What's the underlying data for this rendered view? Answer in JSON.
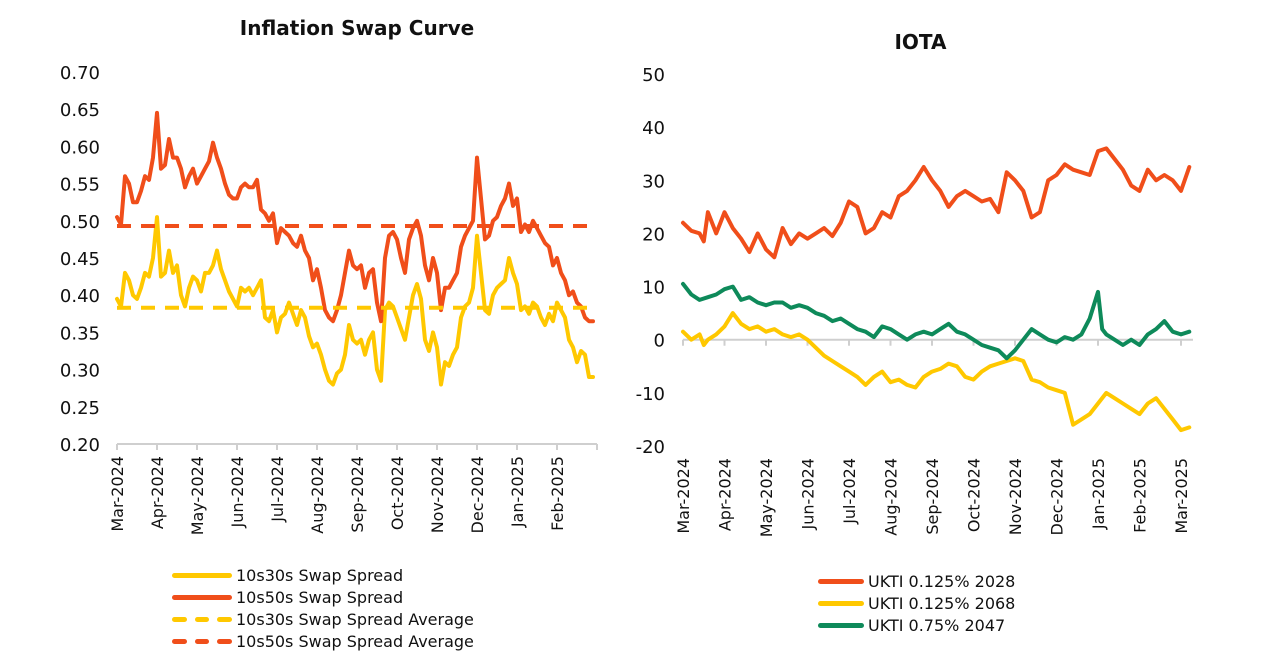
{
  "chart_data": [
    {
      "type": "line",
      "title": "Inflation Swap Curve",
      "xlabel": "",
      "ylabel": "",
      "ylim": [
        0.2,
        0.7
      ],
      "yticks": [
        "0.70",
        "0.65",
        "0.60",
        "0.55",
        "0.50",
        "0.45",
        "0.40",
        "0.35",
        "0.30",
        "0.25",
        "0.20"
      ],
      "ytick_values": [
        0.7,
        0.65,
        0.6,
        0.55,
        0.5,
        0.45,
        0.4,
        0.35,
        0.3,
        0.25,
        0.2
      ],
      "categories": [
        "Mar-2024",
        "Apr-2024",
        "May-2024",
        "Jun-2024",
        "Jul-2024",
        "Aug-2024",
        "Sep-2024",
        "Oct-2024",
        "Nov-2024",
        "Dec-2024",
        "Jan-2025",
        "Feb-2025"
      ],
      "x_months_span": 12,
      "grid": false,
      "legend_position": "bottom",
      "series": [
        {
          "name": "10s30s Swap Spread",
          "color": "#FFC800",
          "style": "solid",
          "x": [
            0,
            0.1,
            0.2,
            0.3,
            0.4,
            0.5,
            0.6,
            0.7,
            0.8,
            0.9,
            1.0,
            1.1,
            1.2,
            1.3,
            1.4,
            1.5,
            1.6,
            1.7,
            1.8,
            1.9,
            2.0,
            2.1,
            2.2,
            2.3,
            2.4,
            2.5,
            2.6,
            2.7,
            2.8,
            2.9,
            3.0,
            3.1,
            3.2,
            3.3,
            3.4,
            3.5,
            3.6,
            3.7,
            3.8,
            3.9,
            4.0,
            4.1,
            4.2,
            4.3,
            4.4,
            4.5,
            4.6,
            4.7,
            4.8,
            4.9,
            5.0,
            5.1,
            5.2,
            5.3,
            5.4,
            5.5,
            5.6,
            5.7,
            5.8,
            5.9,
            6.0,
            6.1,
            6.2,
            6.3,
            6.4,
            6.5,
            6.6,
            6.7,
            6.8,
            6.9,
            7.0,
            7.1,
            7.2,
            7.3,
            7.4,
            7.5,
            7.6,
            7.7,
            7.8,
            7.9,
            8.0,
            8.1,
            8.2,
            8.3,
            8.4,
            8.5,
            8.6,
            8.7,
            8.8,
            8.9,
            9.0,
            9.1,
            9.2,
            9.3,
            9.4,
            9.5,
            9.6,
            9.7,
            9.8,
            9.9,
            10.0,
            10.1,
            10.2,
            10.3,
            10.4,
            10.5,
            10.6,
            10.7,
            10.8,
            10.9,
            11.0,
            11.1,
            11.2,
            11.3,
            11.4,
            11.5,
            11.6,
            11.7,
            11.8,
            11.9
          ],
          "values": [
            0.395,
            0.385,
            0.43,
            0.42,
            0.4,
            0.395,
            0.41,
            0.43,
            0.425,
            0.45,
            0.505,
            0.425,
            0.43,
            0.46,
            0.43,
            0.44,
            0.4,
            0.385,
            0.41,
            0.425,
            0.42,
            0.405,
            0.43,
            0.43,
            0.44,
            0.46,
            0.435,
            0.42,
            0.405,
            0.395,
            0.385,
            0.41,
            0.405,
            0.41,
            0.4,
            0.41,
            0.42,
            0.37,
            0.365,
            0.38,
            0.35,
            0.37,
            0.375,
            0.39,
            0.375,
            0.36,
            0.38,
            0.37,
            0.345,
            0.33,
            0.335,
            0.32,
            0.3,
            0.285,
            0.28,
            0.295,
            0.3,
            0.32,
            0.36,
            0.34,
            0.335,
            0.34,
            0.32,
            0.34,
            0.35,
            0.3,
            0.285,
            0.38,
            0.39,
            0.385,
            0.37,
            0.355,
            0.34,
            0.37,
            0.4,
            0.415,
            0.395,
            0.34,
            0.325,
            0.35,
            0.33,
            0.28,
            0.31,
            0.305,
            0.32,
            0.33,
            0.37,
            0.385,
            0.39,
            0.41,
            0.48,
            0.43,
            0.38,
            0.375,
            0.4,
            0.41,
            0.415,
            0.42,
            0.45,
            0.43,
            0.415,
            0.38,
            0.385,
            0.375,
            0.39,
            0.385,
            0.37,
            0.36,
            0.375,
            0.365,
            0.39,
            0.38,
            0.37,
            0.34,
            0.33,
            0.31,
            0.325,
            0.32,
            0.29,
            0.29
          ]
        },
        {
          "name": "10s50s Swap Spread",
          "color": "#F04E1A",
          "style": "solid",
          "x": [
            0,
            0.1,
            0.2,
            0.3,
            0.4,
            0.5,
            0.6,
            0.7,
            0.8,
            0.9,
            1.0,
            1.1,
            1.2,
            1.3,
            1.4,
            1.5,
            1.6,
            1.7,
            1.8,
            1.9,
            2.0,
            2.1,
            2.2,
            2.3,
            2.4,
            2.5,
            2.6,
            2.7,
            2.8,
            2.9,
            3.0,
            3.1,
            3.2,
            3.3,
            3.4,
            3.5,
            3.6,
            3.7,
            3.8,
            3.9,
            4.0,
            4.1,
            4.2,
            4.3,
            4.4,
            4.5,
            4.6,
            4.7,
            4.8,
            4.9,
            5.0,
            5.1,
            5.2,
            5.3,
            5.4,
            5.5,
            5.6,
            5.7,
            5.8,
            5.9,
            6.0,
            6.1,
            6.2,
            6.3,
            6.4,
            6.5,
            6.6,
            6.7,
            6.8,
            6.9,
            7.0,
            7.1,
            7.2,
            7.3,
            7.4,
            7.5,
            7.6,
            7.7,
            7.8,
            7.9,
            8.0,
            8.1,
            8.2,
            8.3,
            8.4,
            8.5,
            8.6,
            8.7,
            8.8,
            8.9,
            9.0,
            9.1,
            9.2,
            9.3,
            9.4,
            9.5,
            9.6,
            9.7,
            9.8,
            9.9,
            10.0,
            10.1,
            10.2,
            10.3,
            10.4,
            10.5,
            10.6,
            10.7,
            10.8,
            10.9,
            11.0,
            11.1,
            11.2,
            11.3,
            11.4,
            11.5,
            11.6,
            11.7,
            11.8,
            11.9
          ],
          "values": [
            0.505,
            0.495,
            0.56,
            0.55,
            0.525,
            0.525,
            0.54,
            0.56,
            0.555,
            0.585,
            0.645,
            0.57,
            0.575,
            0.61,
            0.585,
            0.585,
            0.57,
            0.545,
            0.56,
            0.57,
            0.55,
            0.56,
            0.57,
            0.58,
            0.605,
            0.585,
            0.57,
            0.55,
            0.535,
            0.53,
            0.53,
            0.545,
            0.55,
            0.545,
            0.545,
            0.555,
            0.515,
            0.51,
            0.5,
            0.51,
            0.47,
            0.49,
            0.485,
            0.48,
            0.47,
            0.465,
            0.48,
            0.46,
            0.45,
            0.42,
            0.435,
            0.41,
            0.38,
            0.37,
            0.365,
            0.38,
            0.4,
            0.43,
            0.46,
            0.44,
            0.435,
            0.44,
            0.41,
            0.43,
            0.435,
            0.39,
            0.365,
            0.45,
            0.48,
            0.485,
            0.475,
            0.45,
            0.43,
            0.475,
            0.49,
            0.5,
            0.48,
            0.44,
            0.42,
            0.45,
            0.43,
            0.38,
            0.41,
            0.41,
            0.42,
            0.43,
            0.465,
            0.48,
            0.49,
            0.5,
            0.585,
            0.53,
            0.475,
            0.48,
            0.5,
            0.505,
            0.52,
            0.53,
            0.55,
            0.52,
            0.53,
            0.485,
            0.495,
            0.485,
            0.5,
            0.49,
            0.48,
            0.47,
            0.465,
            0.44,
            0.45,
            0.43,
            0.42,
            0.4,
            0.405,
            0.39,
            0.385,
            0.37,
            0.365,
            0.365
          ]
        },
        {
          "name": "10s30s Swap Spread Average",
          "color": "#FFC800",
          "style": "dashed",
          "x": [
            0,
            11.9
          ],
          "values": [
            0.383,
            0.383
          ]
        },
        {
          "name": "10s50s Swap Spread Average",
          "color": "#F04E1A",
          "style": "dashed",
          "x": [
            0,
            11.9
          ],
          "values": [
            0.493,
            0.493
          ]
        }
      ]
    },
    {
      "type": "line",
      "title": "IOTA",
      "xlabel": "",
      "ylabel": "",
      "ylim": [
        -20,
        50
      ],
      "yticks": [
        "50",
        "40",
        "30",
        "20",
        "10",
        "0",
        "-10",
        "-20"
      ],
      "ytick_values": [
        50,
        40,
        30,
        20,
        10,
        0,
        -10,
        -20
      ],
      "categories": [
        "Mar-2024",
        "Apr-2024",
        "May-2024",
        "Jun-2024",
        "Jul-2024",
        "Aug-2024",
        "Sep-2024",
        "Oct-2024",
        "Nov-2024",
        "Dec-2024",
        "Jan-2025",
        "Feb-2025",
        "Mar-2025"
      ],
      "x_months_span": 12.3,
      "grid": false,
      "legend_position": "bottom",
      "series": [
        {
          "name": "UKTI 0.125% 2028",
          "color": "#F04E1A",
          "x": [
            0,
            0.2,
            0.4,
            0.5,
            0.6,
            0.8,
            0.9,
            1.0,
            1.2,
            1.4,
            1.6,
            1.8,
            2.0,
            2.2,
            2.4,
            2.6,
            2.8,
            3.0,
            3.2,
            3.4,
            3.6,
            3.8,
            4.0,
            4.2,
            4.4,
            4.6,
            4.8,
            5.0,
            5.2,
            5.4,
            5.6,
            5.8,
            6.0,
            6.2,
            6.4,
            6.6,
            6.8,
            7.0,
            7.2,
            7.4,
            7.6,
            7.8,
            8.0,
            8.2,
            8.4,
            8.6,
            8.8,
            9.0,
            9.2,
            9.4,
            9.6,
            9.8,
            10.0,
            10.2,
            10.4,
            10.6,
            10.8,
            11.0,
            11.2,
            11.4,
            11.6,
            11.8,
            12.0,
            12.2
          ],
          "values": [
            22,
            20.5,
            20,
            18.5,
            24,
            20,
            22,
            24,
            21,
            19,
            16.5,
            20,
            17,
            15.5,
            21,
            18,
            20,
            19,
            20,
            21,
            19.5,
            22,
            26,
            25,
            20,
            21,
            24,
            23,
            27,
            28,
            30,
            32.5,
            30,
            28,
            25,
            27,
            28,
            27,
            26,
            26.5,
            24,
            31.5,
            30,
            28,
            23,
            24,
            30,
            31,
            33,
            32,
            31.5,
            31,
            35.5,
            36,
            34,
            32,
            29,
            28,
            32,
            30,
            31,
            30,
            28,
            32.5
          ]
        },
        {
          "name": "UKTI 0.125% 2068",
          "color": "#FFC800",
          "x": [
            0,
            0.2,
            0.4,
            0.5,
            0.6,
            0.8,
            1.0,
            1.2,
            1.4,
            1.6,
            1.8,
            2.0,
            2.2,
            2.4,
            2.6,
            2.8,
            3.0,
            3.2,
            3.4,
            3.6,
            3.8,
            4.0,
            4.2,
            4.4,
            4.6,
            4.8,
            5.0,
            5.2,
            5.4,
            5.6,
            5.8,
            6.0,
            6.2,
            6.4,
            6.6,
            6.8,
            7.0,
            7.2,
            7.4,
            7.6,
            7.8,
            8.0,
            8.2,
            8.4,
            8.6,
            8.8,
            9.0,
            9.2,
            9.4,
            9.6,
            9.8,
            10.0,
            10.2,
            10.4,
            10.6,
            10.8,
            11.0,
            11.2,
            11.4,
            11.6,
            11.8,
            12.0,
            12.2
          ],
          "values": [
            1.5,
            0,
            1,
            -1,
            0,
            1,
            2.5,
            5,
            3,
            2,
            2.5,
            1.5,
            2,
            1,
            0.5,
            1,
            0,
            -1.5,
            -3,
            -4,
            -5,
            -6,
            -7,
            -8.5,
            -7,
            -6,
            -8,
            -7.5,
            -8.5,
            -9,
            -7,
            -6,
            -5.5,
            -4.5,
            -5,
            -7,
            -7.5,
            -6,
            -5,
            -4.5,
            -4,
            -3.5,
            -4,
            -7.5,
            -8,
            -9,
            -9.5,
            -10,
            -16,
            -15,
            -14,
            -12,
            -10,
            -11,
            -12,
            -13,
            -14,
            -12,
            -11,
            -13,
            -15,
            -17,
            -16.5
          ]
        },
        {
          "name": "UKTI 0.75% 2047",
          "color": "#0E8A5A",
          "x": [
            0,
            0.2,
            0.4,
            0.6,
            0.8,
            1.0,
            1.2,
            1.4,
            1.6,
            1.8,
            2.0,
            2.2,
            2.4,
            2.6,
            2.8,
            3.0,
            3.2,
            3.4,
            3.6,
            3.8,
            4.0,
            4.2,
            4.4,
            4.6,
            4.8,
            5.0,
            5.2,
            5.4,
            5.6,
            5.8,
            6.0,
            6.2,
            6.4,
            6.6,
            6.8,
            7.0,
            7.2,
            7.4,
            7.6,
            7.8,
            8.0,
            8.2,
            8.4,
            8.6,
            8.8,
            9.0,
            9.2,
            9.4,
            9.6,
            9.8,
            10.0,
            10.1,
            10.2,
            10.4,
            10.6,
            10.8,
            11.0,
            11.2,
            11.4,
            11.6,
            11.8,
            12.0,
            12.2
          ],
          "values": [
            10.5,
            8.5,
            7.5,
            8,
            8.5,
            9.5,
            10,
            7.5,
            8,
            7,
            6.5,
            7,
            7,
            6,
            6.5,
            6,
            5,
            4.5,
            3.5,
            4,
            3,
            2,
            1.5,
            0.5,
            2.5,
            2,
            1,
            0,
            1,
            1.5,
            1,
            2,
            3,
            1.5,
            1,
            0,
            -1,
            -1.5,
            -2,
            -3.5,
            -2,
            0,
            2,
            1,
            0,
            -0.5,
            0.5,
            0,
            1,
            4,
            9,
            2,
            1,
            0,
            -1,
            0,
            -1,
            1,
            2,
            3.5,
            1.5,
            1,
            1.5
          ]
        }
      ]
    }
  ],
  "legends": {
    "left": [
      "10s30s Swap Spread",
      "10s50s Swap Spread",
      "10s30s Swap Spread Average",
      "10s50s Swap Spread Average"
    ],
    "right": [
      "UKTI 0.125% 2028",
      "UKTI 0.125% 2068",
      "UKTI 0.75% 2047"
    ]
  }
}
